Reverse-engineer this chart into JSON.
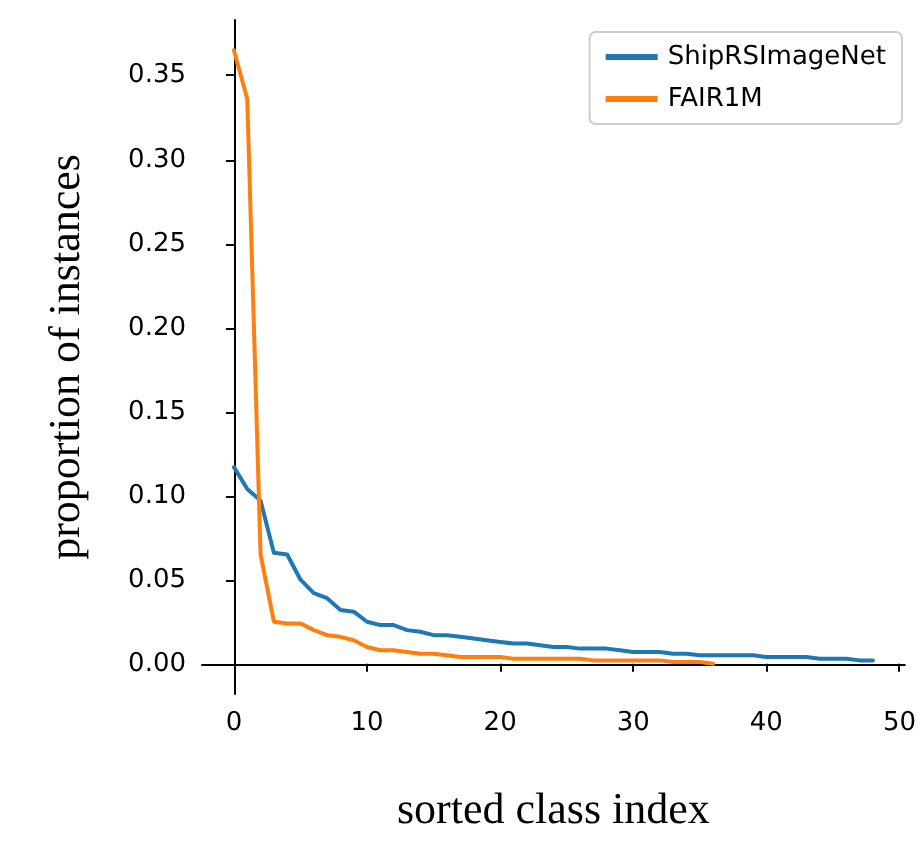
{
  "chart_data": {
    "type": "line",
    "xlabel": "sorted class index",
    "ylabel": "proportion of instances",
    "x": [
      0,
      1,
      2,
      3,
      4,
      5,
      6,
      7,
      8,
      9,
      10,
      11,
      12,
      13,
      14,
      15,
      16,
      17,
      18,
      19,
      20,
      21,
      22,
      23,
      24,
      25,
      26,
      27,
      28,
      29,
      30,
      31,
      32,
      33,
      34,
      35,
      36,
      37,
      38,
      39,
      40,
      41,
      42,
      43,
      44,
      45,
      46,
      47,
      48
    ],
    "series": [
      {
        "name": "ShipRSImageNet",
        "color": "#1f77b4",
        "values": [
          0.117,
          0.104,
          0.097,
          0.066,
          0.065,
          0.05,
          0.042,
          0.039,
          0.032,
          0.031,
          0.025,
          0.023,
          0.023,
          0.02,
          0.019,
          0.017,
          0.017,
          0.016,
          0.015,
          0.014,
          0.013,
          0.012,
          0.012,
          0.011,
          0.01,
          0.01,
          0.009,
          0.009,
          0.009,
          0.008,
          0.007,
          0.007,
          0.007,
          0.006,
          0.006,
          0.005,
          0.005,
          0.005,
          0.005,
          0.005,
          0.004,
          0.004,
          0.004,
          0.004,
          0.003,
          0.003,
          0.003,
          0.002,
          0.002
        ]
      },
      {
        "name": "FAIR1M",
        "color": "#ff7f0e",
        "x": [
          0,
          1,
          2,
          3,
          4,
          5,
          6,
          7,
          8,
          9,
          10,
          11,
          12,
          13,
          14,
          15,
          16,
          17,
          18,
          19,
          20,
          21,
          22,
          23,
          24,
          25,
          26,
          27,
          28,
          29,
          30,
          31,
          32,
          33,
          34,
          35,
          36
        ],
        "values": [
          0.365,
          0.336,
          0.065,
          0.025,
          0.024,
          0.024,
          0.02,
          0.017,
          0.016,
          0.014,
          0.01,
          0.008,
          0.008,
          0.007,
          0.006,
          0.006,
          0.005,
          0.004,
          0.004,
          0.004,
          0.004,
          0.003,
          0.003,
          0.003,
          0.003,
          0.003,
          0.003,
          0.002,
          0.002,
          0.002,
          0.002,
          0.002,
          0.002,
          0.001,
          0.001,
          0.001,
          0.0
        ]
      }
    ],
    "xlim": [
      -2.4,
      50.4
    ],
    "xticks": [
      0,
      10,
      20,
      30,
      40,
      50
    ],
    "ylim": [
      -0.018,
      0.383
    ],
    "yticks": [
      {
        "value": 0,
        "label": "0.00"
      },
      {
        "value": 0.05,
        "label": "0.05"
      },
      {
        "value": 0.1,
        "label": "0.10"
      },
      {
        "value": 0.15,
        "label": "0.15"
      },
      {
        "value": 0.2,
        "label": "0.20"
      },
      {
        "value": 0.25,
        "label": "0.25"
      },
      {
        "value": 0.3,
        "label": "0.30"
      },
      {
        "value": 0.35,
        "label": "0.35"
      }
    ],
    "grid": false,
    "legend": "top right",
    "marker": "none",
    "line_style": "solid"
  }
}
